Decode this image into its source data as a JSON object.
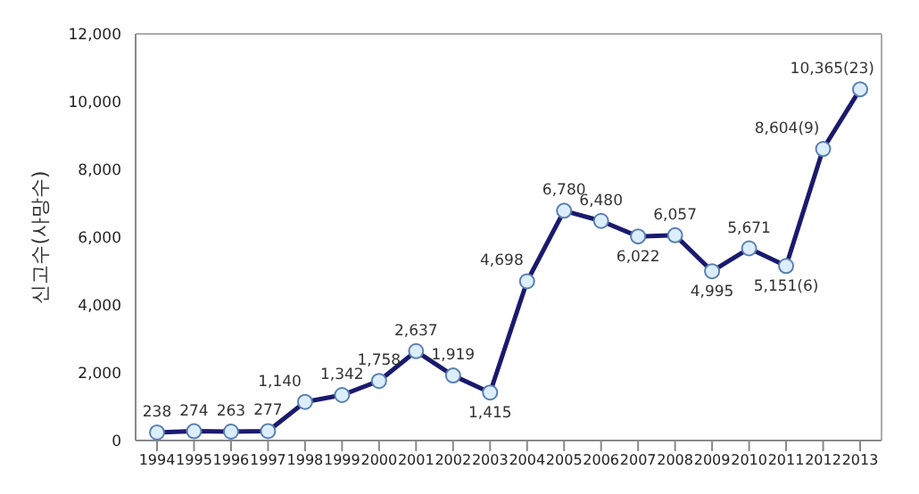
{
  "chart_data": {
    "type": "line",
    "ylabel": "신고수(사망수)",
    "categories": [
      "1994",
      "1995",
      "1996",
      "1997",
      "1998",
      "1999",
      "2000",
      "2001",
      "2002",
      "2003",
      "2004",
      "2005",
      "2006",
      "2007",
      "2008",
      "2009",
      "2010",
      "2011",
      "2012",
      "2013"
    ],
    "series": [
      {
        "color": "#1a1a6e",
        "values": [
          238,
          274,
          263,
          277,
          1140,
          1342,
          1758,
          2637,
          1919,
          1415,
          4698,
          6780,
          6480,
          6022,
          6057,
          4995,
          5671,
          5151,
          8604,
          10365
        ],
        "value_labels": [
          "238",
          "274",
          "263",
          "277",
          "1,140",
          "1,342",
          "1,758",
          "2,637",
          "1,919",
          "1,415",
          "4,698",
          "6,780",
          "6,480",
          "6,022",
          "6,057",
          "4,995",
          "5,671",
          "5,151(6)",
          "8,604(9)",
          "10,365(23)"
        ]
      }
    ],
    "ylim": [
      0,
      12000
    ],
    "yticks": [
      {
        "value": 0,
        "label": "0"
      },
      {
        "value": 2000,
        "label": "2,000"
      },
      {
        "value": 4000,
        "label": "4,000"
      },
      {
        "value": 6000,
        "label": "6,000"
      },
      {
        "value": 8000,
        "label": "8,000"
      },
      {
        "value": 10000,
        "label": "10,000"
      },
      {
        "value": 12000,
        "label": "12,000"
      }
    ],
    "marker": "circle",
    "line_style": "solid",
    "grid": false,
    "legend": false
  }
}
